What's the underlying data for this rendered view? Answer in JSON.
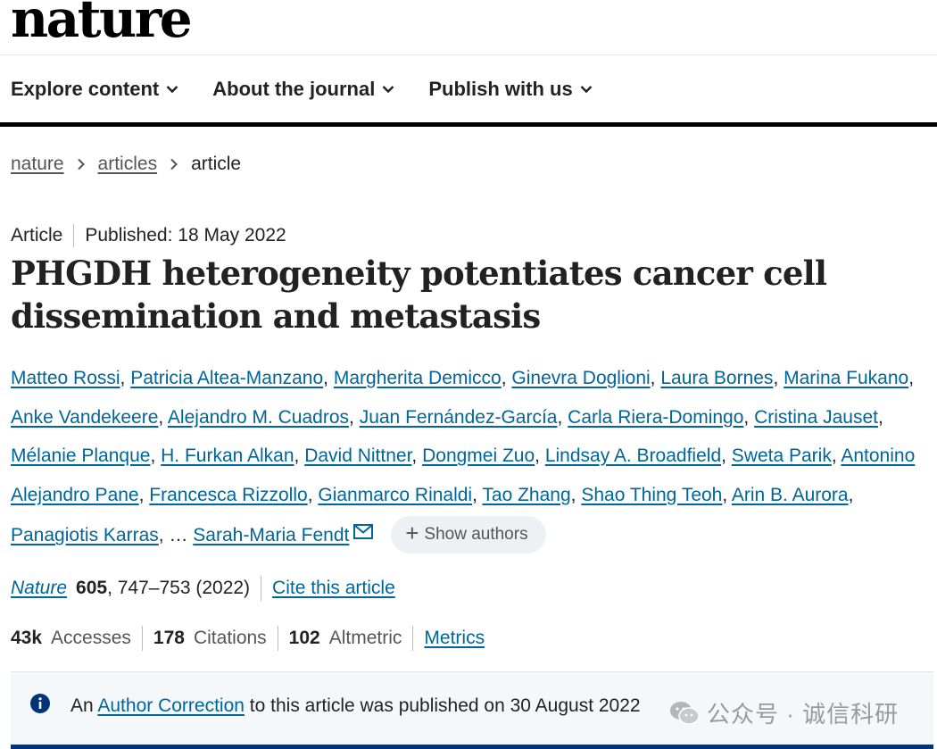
{
  "masthead": {
    "logo": "nature"
  },
  "nav": {
    "items": [
      {
        "label": "Explore content"
      },
      {
        "label": "About the journal"
      },
      {
        "label": "Publish with us"
      }
    ]
  },
  "breadcrumb": {
    "items": [
      "nature",
      "articles",
      "article"
    ]
  },
  "article": {
    "type": "Article",
    "published": "Published: 18 May 2022",
    "title": "PHGDH heterogeneity potentiates cancer cell dissemination and metastasis"
  },
  "authors": {
    "list": [
      "Matteo Rossi",
      "Patricia Altea-Manzano",
      "Margherita Demicco",
      "Ginevra Doglioni",
      "Laura Bornes",
      "Marina Fukano",
      "Anke Vandekeere",
      "Alejandro M. Cuadros",
      "Juan Fernández-García",
      "Carla Riera-Domingo",
      "Cristina Jauset",
      "Mélanie Planque",
      "H. Furkan Alkan",
      "David Nittner",
      "Dongmei Zuo",
      "Lindsay A. Broadfield",
      "Sweta Parik",
      "Antonino Alejandro Pane",
      "Francesca Rizzollo",
      "Gianmarco Rinaldi",
      "Tao Zhang",
      "Shao Thing Teoh",
      "Arin B. Aurora",
      "Panagiotis Karras"
    ],
    "ellipsis": "…",
    "corresponding": "Sarah-Maria Fendt",
    "show_authors": "Show authors"
  },
  "citation": {
    "journal": "Nature",
    "volume": "605",
    "pages_year": ", 747–753 (2022)",
    "cite_label": "Cite this article"
  },
  "metrics": {
    "accesses_value": "43k",
    "accesses_label": "Accesses",
    "citations_value": "178",
    "citations_label": "Citations",
    "altmetric_value": "102",
    "altmetric_label": "Altmetric",
    "metrics_link": "Metrics"
  },
  "notice": {
    "prefix": "An",
    "link": "Author Correction",
    "suffix": "to this article was published on 30 August 2022"
  },
  "watermark": {
    "text": "公众号 · 诚信科研"
  },
  "colors": {
    "link": "#006699",
    "notice_border": "#02337a",
    "pill_bg": "#eef1f4"
  }
}
